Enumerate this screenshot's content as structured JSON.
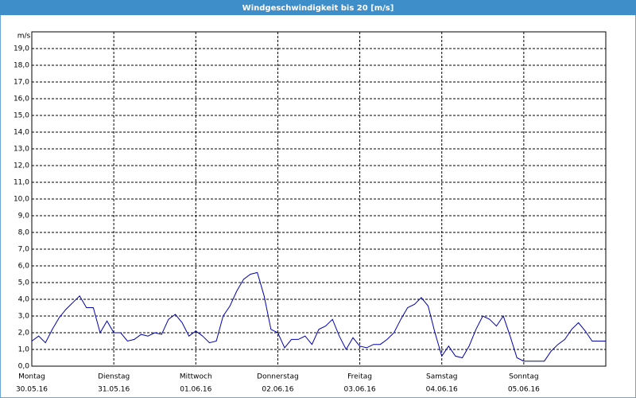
{
  "chart_data": {
    "type": "line",
    "title": "Windgeschwindigkeit bis 20 [m/s]",
    "y_unit": "m/s",
    "x": [
      0,
      2,
      4,
      6,
      8,
      10,
      12,
      14,
      16,
      18,
      20,
      22,
      24,
      26,
      28,
      30,
      32,
      34,
      36,
      38,
      40,
      42,
      44,
      46,
      48,
      50,
      52,
      54,
      56,
      58,
      60,
      62,
      64,
      66,
      68,
      70,
      72,
      74,
      76,
      78,
      80,
      82,
      84,
      86,
      88,
      90,
      92,
      94,
      96,
      98,
      100,
      102,
      104,
      106,
      108,
      110,
      112,
      114,
      116,
      118,
      120,
      122,
      124,
      126,
      128,
      130,
      132,
      134,
      136,
      138,
      140,
      142,
      144,
      146,
      148,
      150,
      152,
      154,
      156,
      158,
      160,
      162,
      164,
      166,
      168
    ],
    "series": [
      {
        "color": "#0000b0",
        "values": [
          1.5,
          1.8,
          1.4,
          2.2,
          2.9,
          3.4,
          3.8,
          4.2,
          3.5,
          3.5,
          2.0,
          2.7,
          2.0,
          2.0,
          1.5,
          1.6,
          1.9,
          1.8,
          2.0,
          1.9,
          2.8,
          3.1,
          2.6,
          1.8,
          2.1,
          1.8,
          1.4,
          1.5,
          3.0,
          3.6,
          4.5,
          5.2,
          5.5,
          5.6,
          4.2,
          2.2,
          2.0,
          1.1,
          1.6,
          1.6,
          1.8,
          1.3,
          2.2,
          2.4,
          2.8,
          1.8,
          1.0,
          1.7,
          1.2,
          1.1,
          1.3,
          1.3,
          1.6,
          2.0,
          2.8,
          3.5,
          3.7,
          4.1,
          3.6,
          2.0,
          0.6,
          1.2,
          0.6,
          0.5,
          1.2,
          2.2,
          3.0,
          2.8,
          2.4,
          3.0,
          1.8,
          0.5,
          0.3,
          0.3,
          0.3,
          0.3,
          0.9,
          1.3,
          1.6,
          2.2,
          2.6,
          2.1,
          1.5,
          1.5,
          1.5
        ]
      }
    ],
    "xlim": [
      0,
      168
    ],
    "xticks": [
      {
        "value": 0,
        "label": "Montag"
      },
      {
        "value": 24,
        "label": "Dienstag"
      },
      {
        "value": 48,
        "label": "Mittwoch"
      },
      {
        "value": 72,
        "label": "Donnerstag"
      },
      {
        "value": 96,
        "label": "Freitag"
      },
      {
        "value": 120,
        "label": "Samstag"
      },
      {
        "value": 144,
        "label": "Sonntag"
      }
    ],
    "xtick_dates": [
      "30.05.16",
      "31.05.16",
      "01.06.16",
      "02.06.16",
      "03.06.16",
      "04.06.16",
      "05.06.16"
    ],
    "ylim": [
      0,
      20
    ],
    "yticks": [
      {
        "value": 0,
        "label": "0,0"
      },
      {
        "value": 1,
        "label": "1,0"
      },
      {
        "value": 2,
        "label": "2,0"
      },
      {
        "value": 3,
        "label": "3,0"
      },
      {
        "value": 4,
        "label": "4,0"
      },
      {
        "value": 5,
        "label": "5,0"
      },
      {
        "value": 6,
        "label": "6,0"
      },
      {
        "value": 7,
        "label": "7,0"
      },
      {
        "value": 8,
        "label": "8,0"
      },
      {
        "value": 9,
        "label": "9,0"
      },
      {
        "value": 10,
        "label": "10,0"
      },
      {
        "value": 11,
        "label": "11,0"
      },
      {
        "value": 12,
        "label": "12,0"
      },
      {
        "value": 13,
        "label": "13,0"
      },
      {
        "value": 14,
        "label": "14,0"
      },
      {
        "value": 15,
        "label": "15,0"
      },
      {
        "value": 16,
        "label": "16,0"
      },
      {
        "value": 17,
        "label": "17,0"
      },
      {
        "value": 18,
        "label": "18,0"
      },
      {
        "value": 19,
        "label": "19,0"
      }
    ],
    "grid": true
  }
}
